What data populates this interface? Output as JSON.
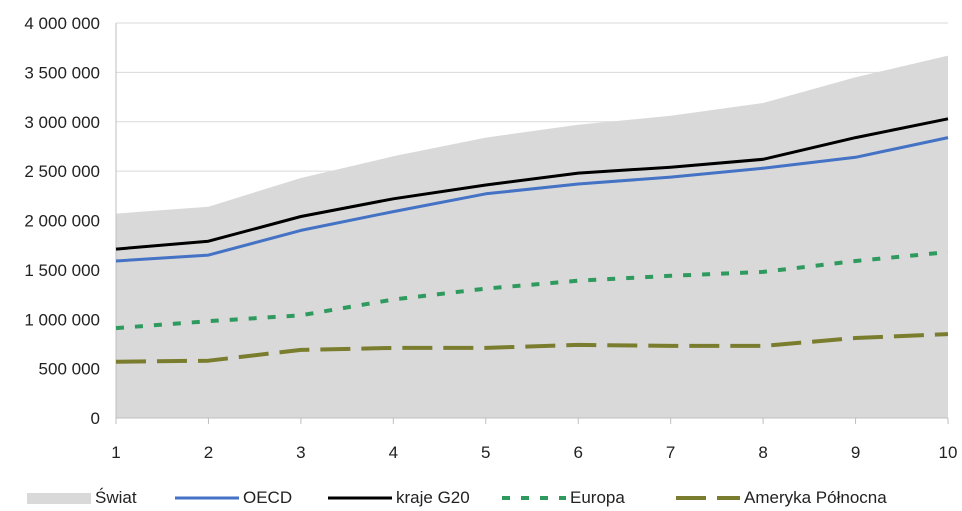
{
  "chart_data": {
    "type": "line",
    "categories": [
      "1",
      "2",
      "3",
      "4",
      "5",
      "6",
      "7",
      "8",
      "9",
      "10"
    ],
    "yticks": [
      "0",
      "500 000",
      "1 000 000",
      "1 500 000",
      "2 000 000",
      "2 500 000",
      "3 000 000",
      "3 500 000",
      "4 000 000"
    ],
    "ylim": [
      0,
      4000000
    ],
    "grid": true,
    "legend_position": "bottom",
    "series": [
      {
        "name": "Świat",
        "style": "area",
        "color": "#d9d9d9",
        "values": [
          2070000,
          2140000,
          2430000,
          2650000,
          2840000,
          2970000,
          3060000,
          3190000,
          3450000,
          3670000
        ]
      },
      {
        "name": "OECD",
        "style": "solid",
        "color": "#4472c4",
        "values": [
          1590000,
          1650000,
          1900000,
          2090000,
          2270000,
          2370000,
          2440000,
          2530000,
          2640000,
          2840000
        ]
      },
      {
        "name": "kraje G20",
        "style": "solid",
        "color": "#000000",
        "values": [
          1710000,
          1790000,
          2040000,
          2220000,
          2360000,
          2480000,
          2540000,
          2620000,
          2840000,
          3030000
        ]
      },
      {
        "name": "Europa",
        "style": "dotted",
        "color": "#2e9a5e",
        "values": [
          910000,
          980000,
          1040000,
          1200000,
          1310000,
          1390000,
          1440000,
          1480000,
          1590000,
          1680000
        ]
      },
      {
        "name": "Ameryka Północna",
        "style": "dashed",
        "color": "#7a7d2e",
        "values": [
          570000,
          580000,
          690000,
          710000,
          710000,
          740000,
          730000,
          730000,
          810000,
          850000
        ]
      }
    ]
  }
}
